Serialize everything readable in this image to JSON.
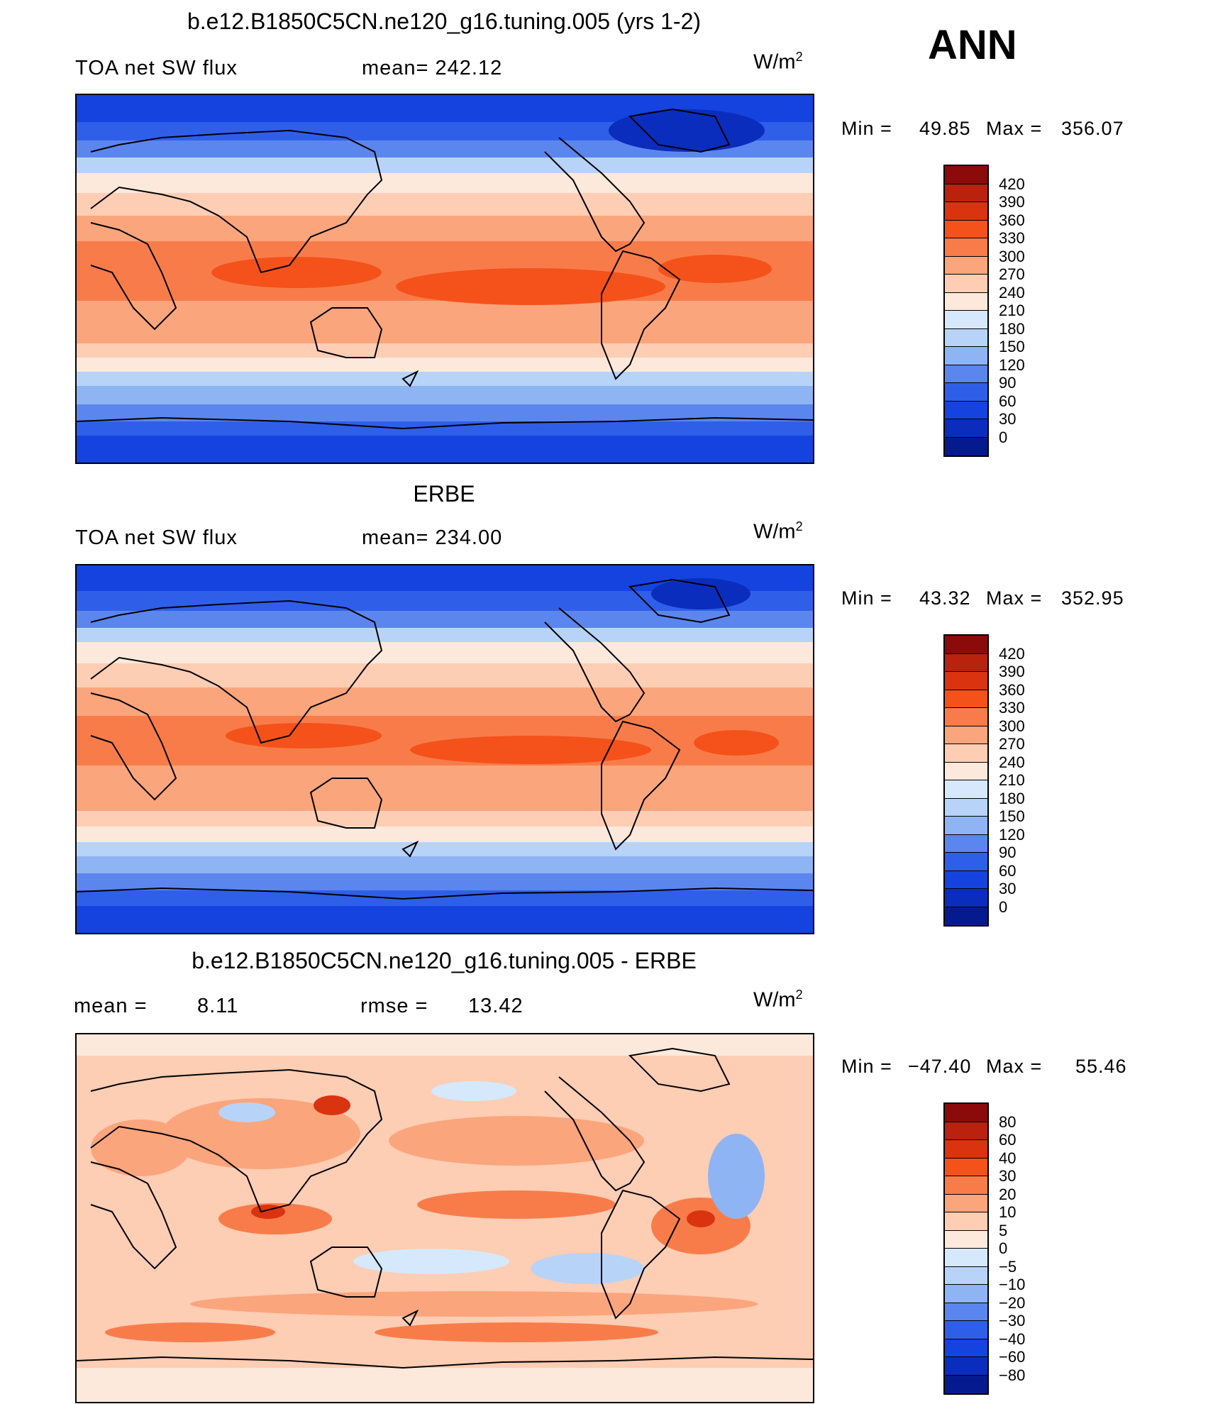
{
  "season": "ANN",
  "units_base": "W/m",
  "units_exp": "2",
  "panel1": {
    "title": "b.e12.B1850C5CN.ne120_g16.tuning.005 (yrs 1-2)",
    "left_label": "TOA net SW flux",
    "mean_label": "mean= 242.12",
    "min_label": "Min =",
    "min_value": "49.85",
    "max_label": "Max =",
    "max_value": "356.07"
  },
  "panel2": {
    "title": "ERBE",
    "left_label": "TOA net SW flux",
    "mean_label": "mean= 234.00",
    "min_label": "Min =",
    "min_value": "43.32",
    "max_label": "Max =",
    "max_value": "352.95"
  },
  "panel3": {
    "title": "b.e12.B1850C5CN.ne120_g16.tuning.005 - ERBE",
    "mean_label": "mean =",
    "mean_value": "8.11",
    "rmse_label": "rmse =",
    "rmse_value": "13.42",
    "min_label": "Min =",
    "min_value": "−47.40",
    "max_label": "Max =",
    "max_value": "55.46"
  },
  "colorbar_abs": {
    "labels": [
      "420",
      "390",
      "360",
      "330",
      "300",
      "270",
      "240",
      "210",
      "180",
      "150",
      "120",
      "90",
      "60",
      "30",
      "0"
    ],
    "colors": [
      "#8b0a0a",
      "#b8220e",
      "#d9340f",
      "#f4521a",
      "#f87c4a",
      "#fba57c",
      "#fdcdb4",
      "#fde9dc",
      "#d6e8fb",
      "#b8d3f8",
      "#8fb4f4",
      "#5b86ee",
      "#2f5fe9",
      "#1443df",
      "#0a2dbd",
      "#061a8f"
    ]
  },
  "colorbar_diff": {
    "labels": [
      "80",
      "60",
      "40",
      "30",
      "20",
      "10",
      "5",
      "0",
      "−5",
      "−10",
      "−20",
      "−30",
      "−40",
      "−60",
      "−80"
    ],
    "colors": [
      "#8b0a0a",
      "#b8220e",
      "#d9340f",
      "#f4521a",
      "#f87c4a",
      "#fba57c",
      "#fdcdb4",
      "#fde9dc",
      "#d6e8fb",
      "#b8d3f8",
      "#8fb4f4",
      "#5b86ee",
      "#2f5fe9",
      "#1443df",
      "#0a2dbd",
      "#061a8f"
    ]
  }
}
